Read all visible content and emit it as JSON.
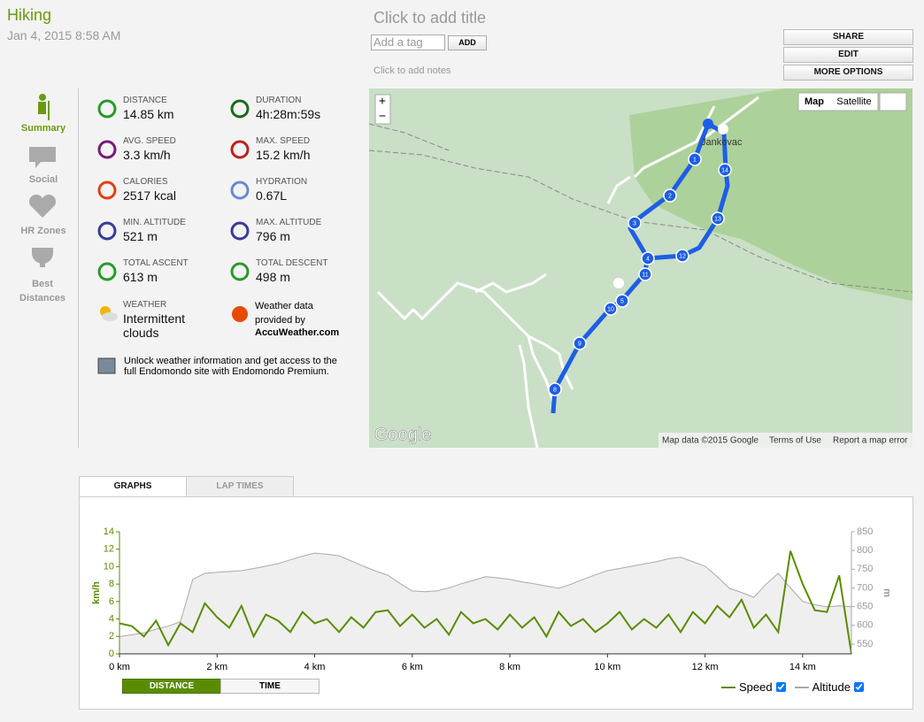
{
  "header": {
    "title": "Hiking",
    "date": "Jan 4, 2015 8:58 AM",
    "add_title": "Click to add title",
    "tag_placeholder": "Add a tag",
    "add_button": "ADD",
    "notes": "Click to add notes"
  },
  "actions": [
    "SHARE",
    "EDIT",
    "MORE OPTIONS"
  ],
  "sidebar": [
    "Summary",
    "Social",
    "HR Zones",
    "Best Distances"
  ],
  "stats": [
    {
      "label": "DISTANCE",
      "value": "14.85 km"
    },
    {
      "label": "DURATION",
      "value": "4h:28m:59s"
    },
    {
      "label": "AVG. SPEED",
      "value": "3.3 km/h"
    },
    {
      "label": "MAX. SPEED",
      "value": "15.2 km/h"
    },
    {
      "label": "CALORIES",
      "value": "2517 kcal"
    },
    {
      "label": "HYDRATION",
      "value": "0.67L"
    },
    {
      "label": "MIN. ALTITUDE",
      "value": "521 m"
    },
    {
      "label": "MAX. ALTITUDE",
      "value": "796 m"
    },
    {
      "label": "TOTAL ASCENT",
      "value": "613 m"
    },
    {
      "label": "TOTAL DESCENT",
      "value": "498 m"
    }
  ],
  "weather": {
    "label": "WEATHER",
    "value": "Intermittent clouds",
    "provider_text": "Weather data provided by",
    "provider": "AccuWeather.com"
  },
  "promo": "Unlock weather information and get access to the full Endomondo site with Endomondo Premium.",
  "map": {
    "zoom_in": "+",
    "zoom_out": "−",
    "map_button": "Map",
    "satellite_button": "Satellite",
    "place": "Jankovac",
    "logo": "Google",
    "attribution": "Map data ©2015 Google",
    "terms": "Terms of Use",
    "report": "Report a map error",
    "markers": [
      "1",
      "2",
      "3",
      "4",
      "5",
      "8",
      "9",
      "10",
      "11",
      "12",
      "13",
      "14"
    ]
  },
  "tabs": [
    "GRAPHS",
    "LAP TIMES"
  ],
  "toggles": [
    "DISTANCE",
    "TIME"
  ],
  "chart_data": {
    "type": "line",
    "y_label": "km/h",
    "y2_label": "m",
    "x": [
      0,
      0.25,
      0.5,
      0.75,
      1,
      1.25,
      1.5,
      1.75,
      2,
      2.25,
      2.5,
      2.75,
      3,
      3.25,
      3.5,
      3.75,
      4,
      4.25,
      4.5,
      4.75,
      5,
      5.25,
      5.5,
      5.75,
      6,
      6.25,
      6.5,
      6.75,
      7,
      7.25,
      7.5,
      7.75,
      8,
      8.25,
      8.5,
      8.75,
      9,
      9.25,
      9.5,
      9.75,
      10,
      10.25,
      10.5,
      10.75,
      11,
      11.25,
      11.5,
      11.75,
      12,
      12.25,
      12.5,
      12.75,
      13,
      13.25,
      13.5,
      13.75,
      14,
      14.25,
      14.5,
      14.75,
      15
    ],
    "xlim": [
      0,
      15
    ],
    "xticks": [
      {
        "value": 0,
        "label": "0 km"
      },
      {
        "value": 2,
        "label": "2 km"
      },
      {
        "value": 4,
        "label": "4 km"
      },
      {
        "value": 6,
        "label": "6 km"
      },
      {
        "value": 8,
        "label": "8 km"
      },
      {
        "value": 10,
        "label": "10 km"
      },
      {
        "value": 12,
        "label": "12 km"
      },
      {
        "value": 14,
        "label": "14 km"
      }
    ],
    "ylim": [
      0,
      14
    ],
    "yticks": [
      0,
      2,
      4,
      6,
      8,
      10,
      12,
      14
    ],
    "y2lim": [
      524,
      850
    ],
    "y2ticks": [
      550,
      600,
      650,
      700,
      750,
      800,
      850
    ],
    "series": [
      {
        "name": "Altitude",
        "color": "#aaaaaa",
        "axis": "y2",
        "values": [
          570,
          575,
          580,
          590,
          598,
          610,
          723,
          739,
          742,
          744,
          746,
          752,
          758,
          765,
          775,
          785,
          793,
          790,
          786,
          772,
          758,
          745,
          734,
          712,
          692,
          690,
          692,
          700,
          711,
          720,
          730,
          727,
          723,
          716,
          711,
          705,
          699,
          710,
          723,
          735,
          746,
          752,
          758,
          764,
          770,
          778,
          782,
          770,
          758,
          730,
          699,
          688,
          675,
          710,
          739,
          700,
          664,
          655,
          650,
          652,
          650
        ]
      },
      {
        "name": "Speed",
        "color": "#5a8c00",
        "values": [
          3.5,
          3.2,
          2.0,
          3.8,
          1.0,
          3.5,
          2.5,
          5.8,
          4.2,
          3.0,
          5.5,
          2.0,
          4.5,
          3.8,
          2.5,
          4.8,
          3.5,
          4.0,
          2.5,
          4.2,
          3.0,
          4.8,
          5.0,
          3.2,
          4.5,
          3.0,
          4.0,
          2.2,
          4.8,
          3.5,
          4.0,
          2.8,
          4.5,
          3.0,
          4.2,
          2.0,
          4.8,
          3.2,
          4.0,
          2.5,
          3.5,
          4.8,
          2.8,
          4.0,
          3.0,
          4.5,
          2.5,
          4.8,
          3.5,
          5.5,
          4.2,
          6.2,
          3.0,
          4.5,
          2.5,
          11.8,
          8.0,
          5.0,
          4.8,
          9.0,
          0
        ]
      }
    ]
  }
}
